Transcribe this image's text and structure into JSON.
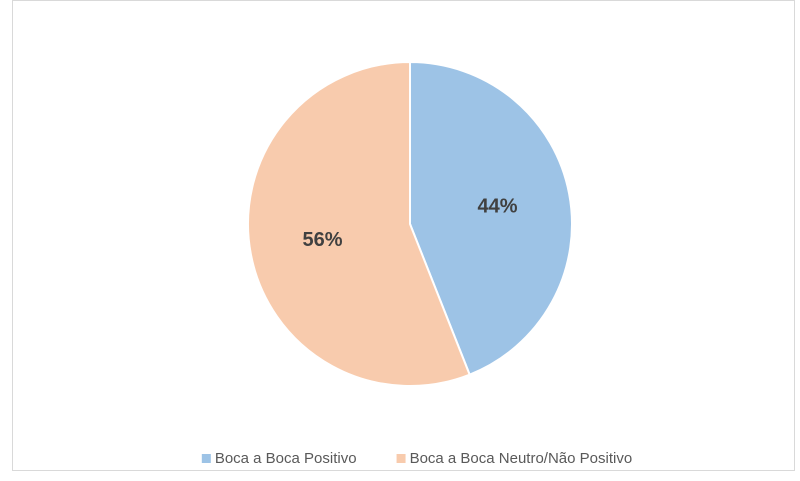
{
  "chart_data": {
    "type": "pie",
    "categories": [
      "Boca a Boca Positivo",
      "Boca a Boca Neutro/Não Positivo"
    ],
    "values": [
      44,
      56
    ],
    "value_labels": [
      "44%",
      "56%"
    ],
    "colors": [
      "#9dc3e6",
      "#f8cbad"
    ],
    "legend": "bottom"
  }
}
